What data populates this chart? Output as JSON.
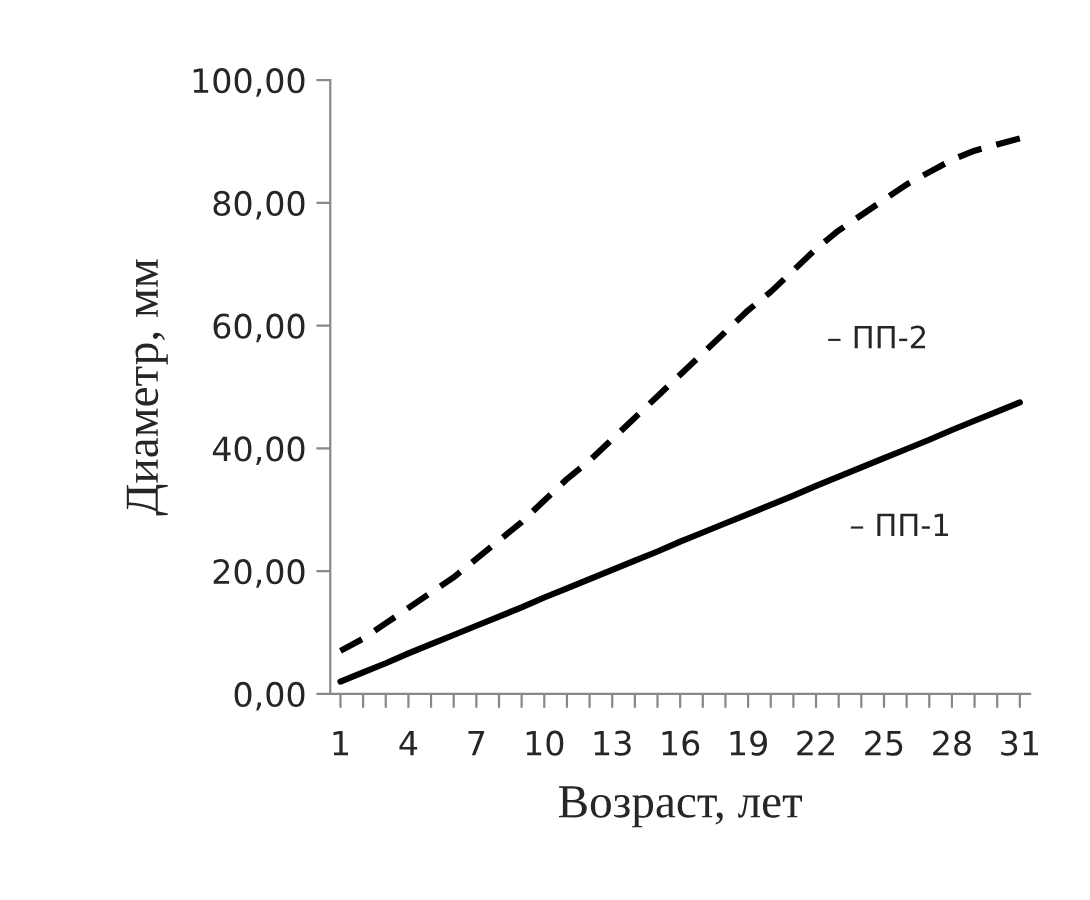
{
  "chart_data": {
    "type": "line",
    "xlabel": "Возраст, лет",
    "ylabel": "Диаметр, мм",
    "categories": [
      "1",
      null,
      null,
      "4",
      null,
      null,
      "7",
      null,
      null,
      "10",
      null,
      null,
      "13",
      null,
      null,
      "16",
      null,
      null,
      "19",
      null,
      null,
      "22",
      null,
      null,
      "25",
      null,
      null,
      "28",
      null,
      null,
      "31"
    ],
    "series": [
      {
        "name": "– ПП-1",
        "color": "#000000",
        "line_style": "solid",
        "values": [
          2.0,
          3.5,
          5.0,
          6.6,
          8.1,
          9.6,
          11.1,
          12.6,
          14.1,
          15.7,
          17.2,
          18.7,
          20.2,
          21.7,
          23.2,
          24.8,
          26.3,
          27.8,
          29.3,
          30.8,
          32.3,
          33.9,
          35.4,
          36.9,
          38.4,
          39.9,
          41.4,
          43.0,
          44.5,
          46.0,
          47.5
        ]
      },
      {
        "name": "– ПП-2",
        "color": "#000000",
        "line_style": "dashed",
        "values": [
          7,
          9,
          11.5,
          14,
          16.5,
          19,
          22,
          25,
          28,
          31.5,
          35,
          38,
          41.5,
          45,
          48.5,
          52,
          55.5,
          59,
          62.5,
          65.5,
          69,
          72.5,
          75.5,
          78,
          80.5,
          83,
          85,
          87,
          88.5,
          89.5,
          90.5
        ]
      }
    ],
    "ylim": [
      0,
      100
    ],
    "yticks": [
      {
        "value": 0,
        "label": "0,00"
      },
      {
        "value": 20,
        "label": "20,00"
      },
      {
        "value": 40,
        "label": "40,00"
      },
      {
        "value": 60,
        "label": "60,00"
      },
      {
        "value": 80,
        "label": "80,00"
      },
      {
        "value": 100,
        "label": "100,00"
      }
    ],
    "grid": false,
    "legend": false,
    "marker": "none"
  }
}
